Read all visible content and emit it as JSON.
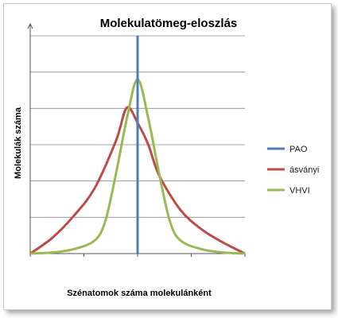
{
  "chart_data": {
    "type": "line",
    "title": "Molekulatömeg-eloszlás",
    "xlabel": "Szénatomok száma molekulánként",
    "ylabel": "Molekulák száma",
    "xlim": [
      0,
      1
    ],
    "ylim": [
      0,
      1
    ],
    "grid": true,
    "legend_position": "right",
    "series": [
      {
        "name": "PAO",
        "color": "#4a7ebb",
        "x": [
          0.5,
          0.5
        ],
        "y": [
          0.0,
          1.0
        ]
      },
      {
        "name": "ásványi",
        "color": "#be4b48",
        "x": [
          0,
          0.1,
          0.2,
          0.3,
          0.4,
          0.45,
          0.5,
          0.55,
          0.6,
          0.7,
          0.8,
          0.9,
          1
        ],
        "y": [
          0,
          0.07,
          0.17,
          0.3,
          0.52,
          0.67,
          0.6,
          0.5,
          0.36,
          0.2,
          0.11,
          0.05,
          0
        ]
      },
      {
        "name": "VHVI",
        "color": "#98b954",
        "x": [
          0,
          0.1,
          0.2,
          0.3,
          0.35,
          0.4,
          0.45,
          0.5,
          0.55,
          0.6,
          0.65,
          0.7,
          0.8,
          0.9,
          1
        ],
        "y": [
          0,
          0.005,
          0.02,
          0.06,
          0.15,
          0.37,
          0.62,
          0.8,
          0.62,
          0.37,
          0.15,
          0.06,
          0.02,
          0.005,
          0
        ]
      }
    ]
  }
}
